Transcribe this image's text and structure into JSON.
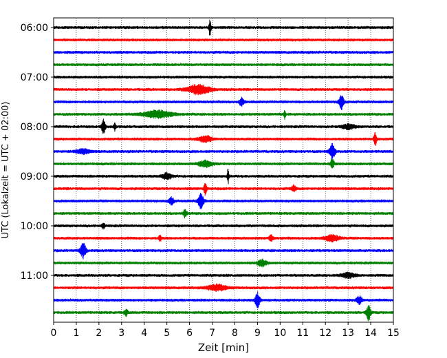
{
  "chart_data": {
    "type": "line",
    "subtype": "helicorder",
    "xlabel": "Zeit  [min]",
    "ylabel": "UTC (Lokalzeit = UTC + 02:00)",
    "xlim": [
      0,
      15
    ],
    "x_ticks": [
      0,
      1,
      2,
      3,
      4,
      5,
      6,
      7,
      8,
      9,
      10,
      11,
      12,
      13,
      14,
      15
    ],
    "x_tick_labels": [
      "0",
      "1",
      "2",
      "3",
      "4",
      "5",
      "6",
      "7",
      "8",
      "9",
      "10",
      "11",
      "12",
      "13",
      "14",
      "15"
    ],
    "y_tick_labels": [
      "06:00",
      "07:00",
      "08:00",
      "09:00",
      "10:00",
      "11:00"
    ],
    "y_tick_rows": [
      0,
      4,
      8,
      12,
      16,
      20
    ],
    "grid": "vertical-dotted",
    "trace_colors": [
      "#000000",
      "#ff0000",
      "#0000ff",
      "#008000"
    ],
    "rows": [
      {
        "start": "06:00",
        "color": "#000000",
        "bursts": [
          {
            "t": 6.9,
            "amp": 1.0,
            "w": 0.05
          }
        ]
      },
      {
        "start": "06:15",
        "color": "#ff0000",
        "bursts": []
      },
      {
        "start": "06:30",
        "color": "#0000ff",
        "bursts": []
      },
      {
        "start": "06:45",
        "color": "#008000",
        "bursts": []
      },
      {
        "start": "07:00",
        "color": "#000000",
        "bursts": []
      },
      {
        "start": "07:15",
        "color": "#ff0000",
        "bursts": [
          {
            "t": 6.4,
            "amp": 0.6,
            "w": 0.5
          }
        ]
      },
      {
        "start": "07:30",
        "color": "#0000ff",
        "bursts": [
          {
            "t": 8.3,
            "amp": 0.5,
            "w": 0.1
          },
          {
            "t": 12.7,
            "amp": 1.0,
            "w": 0.1
          }
        ]
      },
      {
        "start": "07:45",
        "color": "#008000",
        "bursts": [
          {
            "t": 4.6,
            "amp": 0.5,
            "w": 0.6
          },
          {
            "t": 10.2,
            "amp": 0.6,
            "w": 0.04
          }
        ]
      },
      {
        "start": "08:00",
        "color": "#000000",
        "bursts": [
          {
            "t": 2.2,
            "amp": 1.0,
            "w": 0.08
          },
          {
            "t": 2.7,
            "amp": 0.5,
            "w": 0.05
          },
          {
            "t": 13.0,
            "amp": 0.3,
            "w": 0.3
          }
        ]
      },
      {
        "start": "08:15",
        "color": "#ff0000",
        "bursts": [
          {
            "t": 6.7,
            "amp": 0.4,
            "w": 0.3
          },
          {
            "t": 14.2,
            "amp": 0.9,
            "w": 0.06
          }
        ]
      },
      {
        "start": "08:30",
        "color": "#0000ff",
        "bursts": [
          {
            "t": 1.3,
            "amp": 0.3,
            "w": 0.3
          },
          {
            "t": 12.3,
            "amp": 1.0,
            "w": 0.12
          }
        ]
      },
      {
        "start": "08:45",
        "color": "#008000",
        "bursts": [
          {
            "t": 6.7,
            "amp": 0.4,
            "w": 0.3
          },
          {
            "t": 12.3,
            "amp": 0.6,
            "w": 0.08
          }
        ]
      },
      {
        "start": "09:00",
        "color": "#000000",
        "bursts": [
          {
            "t": 5.0,
            "amp": 0.4,
            "w": 0.2
          },
          {
            "t": 7.7,
            "amp": 1.0,
            "w": 0.04
          }
        ]
      },
      {
        "start": "09:15",
        "color": "#ff0000",
        "bursts": [
          {
            "t": 6.7,
            "amp": 1.0,
            "w": 0.06
          },
          {
            "t": 10.6,
            "amp": 0.4,
            "w": 0.1
          }
        ]
      },
      {
        "start": "09:30",
        "color": "#0000ff",
        "bursts": [
          {
            "t": 5.2,
            "amp": 0.5,
            "w": 0.1
          },
          {
            "t": 6.5,
            "amp": 1.0,
            "w": 0.12
          }
        ]
      },
      {
        "start": "09:45",
        "color": "#008000",
        "bursts": [
          {
            "t": 5.8,
            "amp": 0.5,
            "w": 0.08
          }
        ]
      },
      {
        "start": "10:00",
        "color": "#000000",
        "bursts": [
          {
            "t": 2.2,
            "amp": 0.4,
            "w": 0.06
          }
        ]
      },
      {
        "start": "10:15",
        "color": "#ff0000",
        "bursts": [
          {
            "t": 4.7,
            "amp": 0.4,
            "w": 0.06
          },
          {
            "t": 9.6,
            "amp": 0.4,
            "w": 0.08
          },
          {
            "t": 12.3,
            "amp": 0.4,
            "w": 0.3
          }
        ]
      },
      {
        "start": "10:30",
        "color": "#0000ff",
        "bursts": [
          {
            "t": 1.3,
            "amp": 1.0,
            "w": 0.12
          }
        ]
      },
      {
        "start": "10:45",
        "color": "#008000",
        "bursts": [
          {
            "t": 9.2,
            "amp": 0.4,
            "w": 0.2
          }
        ]
      },
      {
        "start": "11:00",
        "color": "#000000",
        "bursts": [
          {
            "t": 13.0,
            "amp": 0.3,
            "w": 0.3
          }
        ]
      },
      {
        "start": "11:15",
        "color": "#ff0000",
        "bursts": [
          {
            "t": 7.2,
            "amp": 0.4,
            "w": 0.4
          }
        ]
      },
      {
        "start": "11:30",
        "color": "#0000ff",
        "bursts": [
          {
            "t": 9.0,
            "amp": 1.0,
            "w": 0.1
          },
          {
            "t": 13.5,
            "amp": 0.5,
            "w": 0.12
          }
        ]
      },
      {
        "start": "11:45",
        "color": "#008000",
        "bursts": [
          {
            "t": 3.2,
            "amp": 0.4,
            "w": 0.08
          },
          {
            "t": 13.9,
            "amp": 1.0,
            "w": 0.1
          }
        ]
      }
    ]
  }
}
